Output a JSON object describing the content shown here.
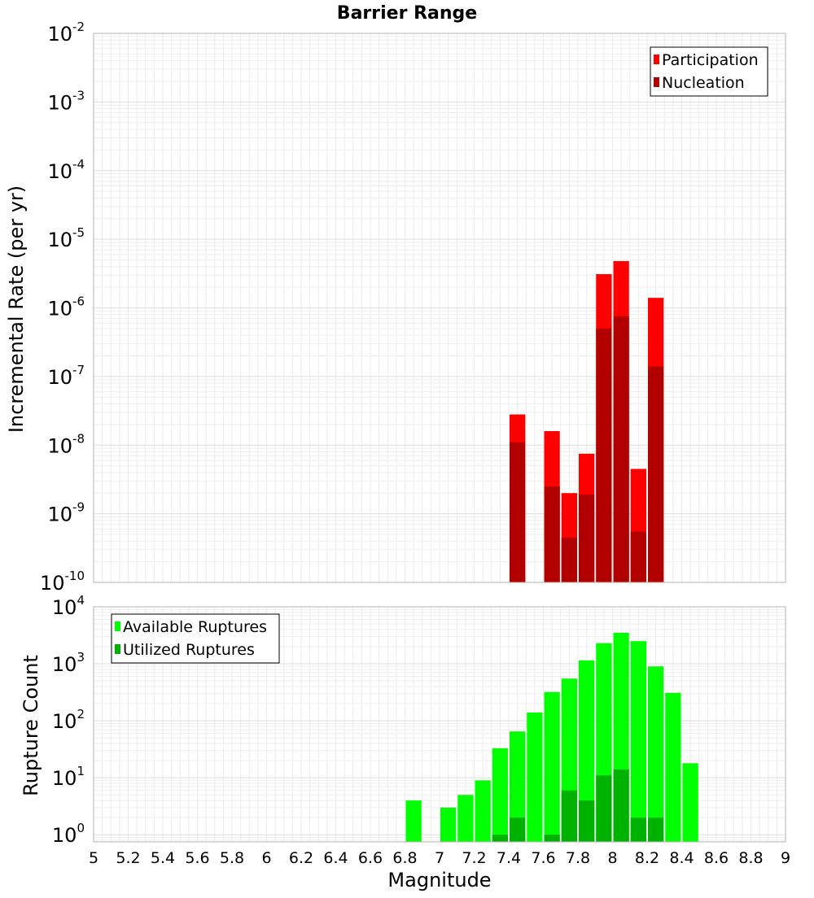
{
  "chart_data": [
    {
      "type": "bar",
      "title": "Barrier Range",
      "xlabel": "Magnitude",
      "ylabel": "Incremental Rate (per yr)",
      "xlim": [
        5,
        9
      ],
      "ylim": [
        1e-10,
        0.01
      ],
      "yscale": "log",
      "grid": true,
      "legend_position": "top-right",
      "bar_width": 0.1,
      "series": [
        {
          "name": "Participation",
          "color": "#ff0000",
          "points": [
            [
              7.45,
              2.8e-08
            ],
            [
              7.65,
              1.6e-08
            ],
            [
              7.75,
              2e-09
            ],
            [
              7.85,
              7.5e-09
            ],
            [
              7.95,
              3.1e-06
            ],
            [
              8.05,
              4.8e-06
            ],
            [
              8.15,
              4.5e-09
            ],
            [
              8.25,
              1.4e-06
            ]
          ]
        },
        {
          "name": "Nucleation",
          "color": "#b20000",
          "points": [
            [
              7.45,
              1.1e-08
            ],
            [
              7.65,
              2.5e-09
            ],
            [
              7.75,
              4.5e-10
            ],
            [
              7.85,
              1.9e-09
            ],
            [
              7.95,
              5e-07
            ],
            [
              8.05,
              7.5e-07
            ],
            [
              8.15,
              5.5e-10
            ],
            [
              8.25,
              1.4e-07
            ]
          ]
        }
      ]
    },
    {
      "type": "bar",
      "xlabel": "Magnitude",
      "ylabel": "Rupture Count",
      "xlim": [
        5,
        9
      ],
      "ylim": [
        0.75,
        10000
      ],
      "yscale": "log",
      "grid": true,
      "legend_position": "top-left",
      "bar_width": 0.1,
      "series": [
        {
          "name": "Available Ruptures",
          "color": "#00ff00",
          "points": [
            [
              6.85,
              4
            ],
            [
              7.05,
              3
            ],
            [
              7.15,
              5
            ],
            [
              7.25,
              9
            ],
            [
              7.35,
              33
            ],
            [
              7.45,
              65
            ],
            [
              7.55,
              140
            ],
            [
              7.65,
              320
            ],
            [
              7.75,
              550
            ],
            [
              7.85,
              1150
            ],
            [
              7.95,
              2300
            ],
            [
              8.05,
              3500
            ],
            [
              8.15,
              2500
            ],
            [
              8.25,
              900
            ],
            [
              8.35,
              310
            ],
            [
              8.45,
              18
            ]
          ]
        },
        {
          "name": "Utilized Ruptures",
          "color": "#00b200",
          "points": [
            [
              7.35,
              1
            ],
            [
              7.45,
              2
            ],
            [
              7.65,
              1
            ],
            [
              7.75,
              6
            ],
            [
              7.85,
              4
            ],
            [
              7.95,
              11
            ],
            [
              8.05,
              14
            ],
            [
              8.15,
              2
            ],
            [
              8.25,
              2
            ]
          ]
        }
      ]
    }
  ],
  "x_ticks": [
    "5",
    "5.2",
    "5.4",
    "5.6",
    "5.8",
    "6",
    "6.2",
    "6.4",
    "6.6",
    "6.8",
    "7",
    "7.2",
    "7.4",
    "7.6",
    "7.8",
    "8",
    "8.2",
    "8.4",
    "8.6",
    "8.8",
    "9"
  ],
  "top_y_ticks": [
    {
      "base": "10",
      "exp": "-2"
    },
    {
      "base": "10",
      "exp": "-3"
    },
    {
      "base": "10",
      "exp": "-4"
    },
    {
      "base": "10",
      "exp": "-5"
    },
    {
      "base": "10",
      "exp": "-6"
    },
    {
      "base": "10",
      "exp": "-7"
    },
    {
      "base": "10",
      "exp": "-8"
    },
    {
      "base": "10",
      "exp": "-9"
    },
    {
      "base": "10",
      "exp": "-10"
    }
  ],
  "bottom_y_ticks": [
    {
      "base": "10",
      "exp": "4"
    },
    {
      "base": "10",
      "exp": "3"
    },
    {
      "base": "10",
      "exp": "2"
    },
    {
      "base": "10",
      "exp": "1"
    },
    {
      "base": "10",
      "exp": "0"
    }
  ]
}
